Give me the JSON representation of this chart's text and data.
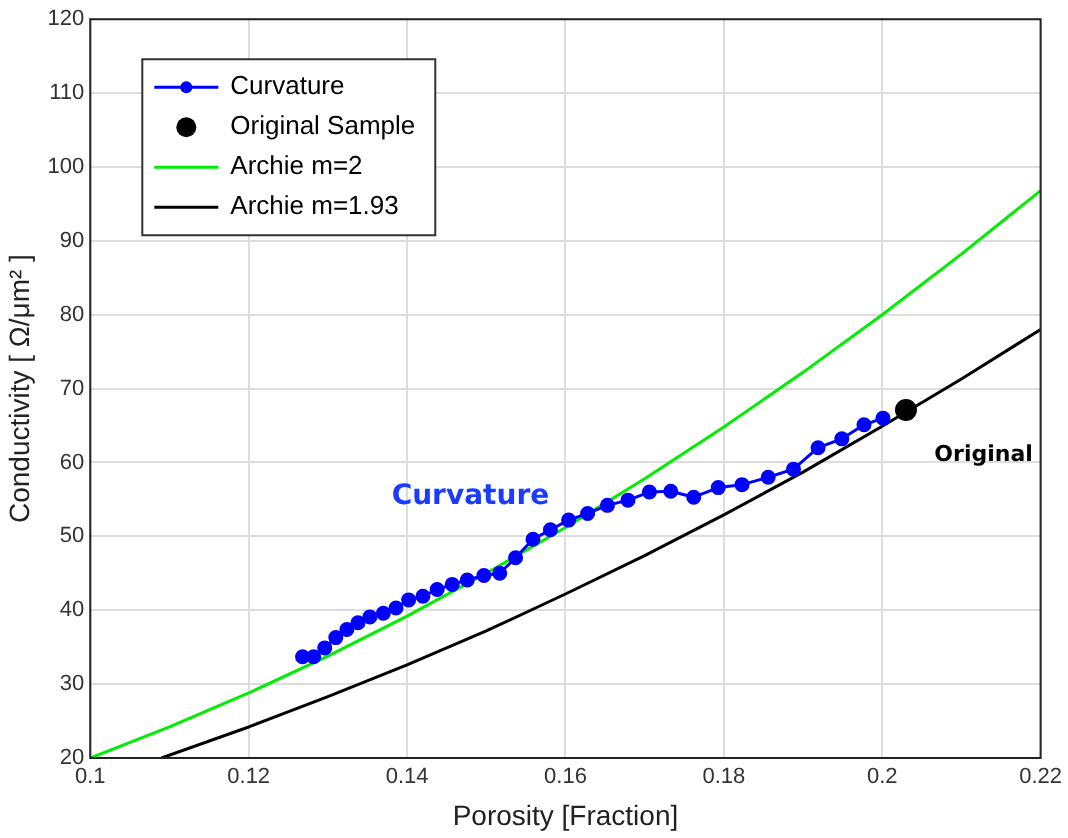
{
  "chart_data": {
    "type": "line",
    "xlabel": "Porosity [Fraction]",
    "ylabel": "Conductivity [ Ω/μm² ]",
    "xlim": [
      0.1,
      0.22
    ],
    "xticks": [
      0.1,
      0.12,
      0.14,
      0.16,
      0.18,
      0.2,
      0.22
    ],
    "ylim": [
      20,
      120
    ],
    "yticks": [
      20,
      30,
      40,
      50,
      60,
      70,
      80,
      90,
      100,
      110,
      120
    ],
    "grid": true,
    "legend": "top left",
    "series": [
      {
        "name": "Curvature",
        "marker": "circle",
        "color": "#0000ff",
        "x": [
          0.1268,
          0.1282,
          0.1296,
          0.131,
          0.1324,
          0.1338,
          0.1353,
          0.137,
          0.1386,
          0.1402,
          0.142,
          0.1438,
          0.1457,
          0.1476,
          0.1497,
          0.1517,
          0.1537,
          0.1559,
          0.1581,
          0.1604,
          0.1628,
          0.1653,
          0.1679,
          0.1706,
          0.1733,
          0.1762,
          0.1793,
          0.1823,
          0.1856,
          0.1888,
          0.1919,
          0.1949,
          0.1977,
          0.2001
        ],
        "values": [
          33.7,
          33.7,
          34.9,
          36.3,
          37.4,
          38.3,
          39.1,
          39.6,
          40.3,
          41.4,
          41.9,
          42.8,
          43.5,
          44.1,
          44.7,
          45.0,
          47.1,
          49.6,
          50.9,
          52.2,
          53.1,
          54.2,
          54.9,
          56.0,
          56.1,
          55.3,
          56.6,
          57.0,
          58.0,
          59.1,
          62.0,
          63.2,
          65.1,
          66.0
        ]
      },
      {
        "name": "Original Sample",
        "type": "scatter",
        "marker": "circle",
        "color": "#000000",
        "x": [
          0.203
        ],
        "values": [
          67.1
        ]
      },
      {
        "name": "Archie m=2",
        "marker": "none",
        "color": "#00ee00",
        "x": [
          0.1,
          0.11,
          0.12,
          0.13,
          0.14,
          0.15,
          0.16,
          0.17,
          0.18,
          0.19,
          0.2,
          0.21,
          0.22
        ],
        "values": [
          20,
          24.2,
          28.8,
          33.8,
          39.2,
          45,
          51.2,
          57.8,
          64.8,
          72.2,
          80,
          88.2,
          96.8
        ]
      },
      {
        "name": "Archie m=1.93",
        "marker": "none",
        "color": "#000000",
        "x": [
          0.109,
          0.12,
          0.13,
          0.14,
          0.15,
          0.16,
          0.17,
          0.18,
          0.19,
          0.2,
          0.21,
          0.22
        ],
        "values": [
          20,
          24.2,
          28.3,
          32.6,
          37.2,
          42.2,
          47.4,
          52.9,
          58.7,
          64.9,
          71.3,
          78
        ]
      }
    ],
    "annotations": [
      "Curvature",
      "Original"
    ]
  }
}
